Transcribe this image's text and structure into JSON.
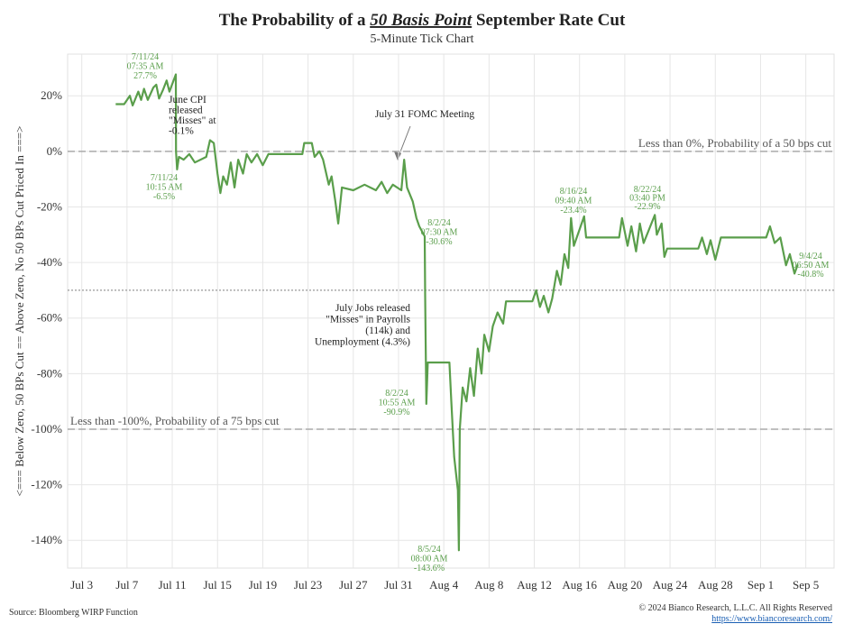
{
  "chart_data": {
    "type": "line",
    "title": [
      "The Probability of a ",
      "50 Basis Point",
      " September Rate Cut"
    ],
    "subtitle": "5-Minute Tick Chart",
    "y_label": "<=== Below Zero, 50 BPs Cut == Above Zero, No 50 BPs Cut Priced In ===>",
    "source": "Source: Bloomberg WIRP Function",
    "copyright": "© 2024 Bianco Research, L.L.C. All Rights Reserved",
    "url": "https://www.biancoresearch.com/",
    "xlim": [
      "2024-07-01T18:00",
      "2024-09-07T12:00"
    ],
    "xticks": [
      {
        "value": "2024-07-03T00:00",
        "label": "Jul 3"
      },
      {
        "value": "2024-07-07T00:00",
        "label": "Jul 7"
      },
      {
        "value": "2024-07-11T00:00",
        "label": "Jul 11"
      },
      {
        "value": "2024-07-15T00:00",
        "label": "Jul 15"
      },
      {
        "value": "2024-07-19T00:00",
        "label": "Jul 19"
      },
      {
        "value": "2024-07-23T00:00",
        "label": "Jul 23"
      },
      {
        "value": "2024-07-27T00:00",
        "label": "Jul 27"
      },
      {
        "value": "2024-07-31T00:00",
        "label": "Jul 31"
      },
      {
        "value": "2024-08-04T00:00",
        "label": "Aug 4"
      },
      {
        "value": "2024-08-08T00:00",
        "label": "Aug 8"
      },
      {
        "value": "2024-08-12T00:00",
        "label": "Aug 12"
      },
      {
        "value": "2024-08-16T00:00",
        "label": "Aug 16"
      },
      {
        "value": "2024-08-20T00:00",
        "label": "Aug 20"
      },
      {
        "value": "2024-08-24T00:00",
        "label": "Aug 24"
      },
      {
        "value": "2024-08-28T00:00",
        "label": "Aug 28"
      },
      {
        "value": "2024-09-01T00:00",
        "label": "Sep 1"
      },
      {
        "value": "2024-09-05T00:00",
        "label": "Sep 5"
      }
    ],
    "ylim": [
      -150,
      35
    ],
    "yticks": [
      {
        "value": 20,
        "label": "20%"
      },
      {
        "value": 0,
        "label": "0%"
      },
      {
        "value": -20,
        "label": "-20%"
      },
      {
        "value": -40,
        "label": "-40%"
      },
      {
        "value": -60,
        "label": "-60%"
      },
      {
        "value": -80,
        "label": "-80%"
      },
      {
        "value": -100,
        "label": "-100%"
      },
      {
        "value": -120,
        "label": "-120%"
      },
      {
        "value": -140,
        "label": "-140%"
      }
    ],
    "grid": true,
    "reference_lines": [
      {
        "value": 0,
        "label": "Less than 0%, Probability of a 50 bps cut",
        "style": "dashed"
      },
      {
        "value": -50,
        "style": "dotted"
      },
      {
        "value": -100,
        "label": "Less than -100%, Probability of a 75 bps cut",
        "style": "dashed"
      }
    ],
    "x": [
      "2024-07-06T00:00",
      "2024-07-06T18:00",
      "2024-07-07T06:00",
      "2024-07-07T12:00",
      "2024-07-08T00:00",
      "2024-07-08T06:00",
      "2024-07-08T12:00",
      "2024-07-08T20:00",
      "2024-07-09T08:00",
      "2024-07-09T14:00",
      "2024-07-09T20:00",
      "2024-07-10T04:00",
      "2024-07-10T12:00",
      "2024-07-10T18:00",
      "2024-07-11T07:35",
      "2024-07-11T08:00",
      "2024-07-11T10:15",
      "2024-07-11T14:00",
      "2024-07-12T00:00",
      "2024-07-12T12:00",
      "2024-07-13T00:00",
      "2024-07-14T00:00",
      "2024-07-14T08:00",
      "2024-07-14T16:00",
      "2024-07-15T00:00",
      "2024-07-15T06:00",
      "2024-07-15T12:00",
      "2024-07-15T20:00",
      "2024-07-16T04:00",
      "2024-07-16T12:00",
      "2024-07-16T20:00",
      "2024-07-17T06:00",
      "2024-07-17T14:00",
      "2024-07-18T00:00",
      "2024-07-18T12:00",
      "2024-07-19T00:00",
      "2024-07-19T12:00",
      "2024-07-20T00:00",
      "2024-07-22T12:00",
      "2024-07-22T16:00",
      "2024-07-23T08:00",
      "2024-07-23T14:00",
      "2024-07-24T00:00",
      "2024-07-24T08:00",
      "2024-07-24T20:00",
      "2024-07-25T02:00",
      "2024-07-25T10:00",
      "2024-07-25T16:00",
      "2024-07-26T00:00",
      "2024-07-27T00:00",
      "2024-07-28T00:00",
      "2024-07-29T00:00",
      "2024-07-29T12:00",
      "2024-07-30T00:00",
      "2024-07-30T12:00",
      "2024-07-31T06:00",
      "2024-07-31T12:00",
      "2024-07-31T18:00",
      "2024-08-01T06:00",
      "2024-08-01T14:00",
      "2024-08-01T20:00",
      "2024-08-02T07:30",
      "2024-08-02T08:30",
      "2024-08-02T10:55",
      "2024-08-02T14:00",
      "2024-08-04T12:00",
      "2024-08-04T16:00",
      "2024-08-04T22:00",
      "2024-08-05T06:00",
      "2024-08-05T08:00",
      "2024-08-05T10:00",
      "2024-08-05T16:00",
      "2024-08-06T00:00",
      "2024-08-06T08:00",
      "2024-08-06T16:00",
      "2024-08-07T00:00",
      "2024-08-07T08:00",
      "2024-08-07T14:00",
      "2024-08-08T00:00",
      "2024-08-08T08:00",
      "2024-08-08T18:00",
      "2024-08-09T06:00",
      "2024-08-09T12:00",
      "2024-08-11T20:00",
      "2024-08-12T04:00",
      "2024-08-12T12:00",
      "2024-08-12T20:00",
      "2024-08-13T06:00",
      "2024-08-13T14:00",
      "2024-08-14T00:00",
      "2024-08-14T08:00",
      "2024-08-14T16:00",
      "2024-08-15T00:00",
      "2024-08-15T06:00",
      "2024-08-15T12:00",
      "2024-08-16T09:40",
      "2024-08-16T14:00",
      "2024-08-19T12:00",
      "2024-08-19T18:00",
      "2024-08-20T06:00",
      "2024-08-20T14:00",
      "2024-08-21T00:00",
      "2024-08-21T08:00",
      "2024-08-21T16:00",
      "2024-08-22T15:40",
      "2024-08-22T20:00",
      "2024-08-23T06:00",
      "2024-08-23T12:00",
      "2024-08-23T18:00",
      "2024-08-26T12:00",
      "2024-08-26T20:00",
      "2024-08-27T06:00",
      "2024-08-27T14:00",
      "2024-08-28T00:00",
      "2024-08-28T12:00",
      "2024-09-01T12:00",
      "2024-09-01T20:00",
      "2024-09-02T06:00",
      "2024-09-02T18:00",
      "2024-09-03T06:00",
      "2024-09-03T14:00",
      "2024-09-04T00:00",
      "2024-09-04T06:50"
    ],
    "series": [
      {
        "color": "#5a9e4b",
        "values": [
          17,
          17,
          20,
          16.5,
          21.5,
          18.5,
          22.5,
          18.5,
          23,
          24,
          19,
          22,
          25.5,
          21.5,
          27.7,
          0,
          -6.5,
          -2,
          -3,
          -1,
          -4,
          -2,
          4,
          3,
          -8,
          -15,
          -9,
          -12,
          -4,
          -13,
          -3,
          -8,
          -1,
          -4,
          -1,
          -5,
          -1,
          -1,
          -1,
          3,
          3,
          -2,
          0,
          -3,
          -12,
          -9,
          -18,
          -26,
          -13,
          -14,
          -12,
          -14,
          -11,
          -15,
          -12,
          -14,
          -3,
          -13,
          -18,
          -24,
          -27,
          -30.6,
          -52,
          -90.9,
          -76,
          -76,
          -90,
          -110,
          -122,
          -143.6,
          -100,
          -85,
          -90,
          -78,
          -88,
          -71,
          -80,
          -66,
          -72,
          -63,
          -58,
          -62,
          -54,
          -54,
          -50,
          -56,
          -52,
          -58,
          -53,
          -43,
          -48,
          -37,
          -42,
          -24,
          -34,
          -23.4,
          -31,
          -31,
          -24,
          -34,
          -27,
          -36,
          -26,
          -33,
          -22.9,
          -30,
          -26,
          -38,
          -35,
          -35,
          -31,
          -37,
          -32,
          -39,
          -31,
          -31,
          -27,
          -33,
          -31,
          -41,
          -37,
          -44,
          -40.8
        ]
      }
    ],
    "annotations": [
      {
        "lines": [
          "7/11/24",
          "07:35 AM",
          "27.7%"
        ],
        "color": "#5a9e4b"
      },
      {
        "lines": [
          "7/11/24",
          "10:15 AM",
          "-6.5%"
        ],
        "color": "#5a9e4b"
      },
      {
        "lines": [
          "8/2/24",
          "07:30 AM",
          "-30.6%"
        ],
        "color": "#5a9e4b"
      },
      {
        "lines": [
          "8/2/24",
          "10:55 AM",
          "-90.9%"
        ],
        "color": "#5a9e4b"
      },
      {
        "lines": [
          "8/5/24",
          "08:00 AM",
          "-143.6%"
        ],
        "color": "#5a9e4b"
      },
      {
        "lines": [
          "8/16/24",
          "09:40 AM",
          "-23.4%"
        ],
        "color": "#5a9e4b"
      },
      {
        "lines": [
          "8/22/24",
          "03:40 PM",
          "-22.9%"
        ],
        "color": "#5a9e4b"
      },
      {
        "lines": [
          "9/4/24",
          "06:50 AM",
          "-40.8%"
        ],
        "color": "#5a9e4b"
      },
      {
        "lines": [
          "June CPI",
          "released",
          "\"Misses\" at",
          "-0.1%"
        ],
        "color": "#222222"
      },
      {
        "lines": [
          "July 31 FOMC Meeting"
        ],
        "color": "#222222"
      },
      {
        "lines": [
          "July Jobs released",
          "\"Misses\" in Payrolls",
          "(114k) and",
          "Unemployment (4.3%)"
        ],
        "color": "#222222"
      }
    ]
  }
}
